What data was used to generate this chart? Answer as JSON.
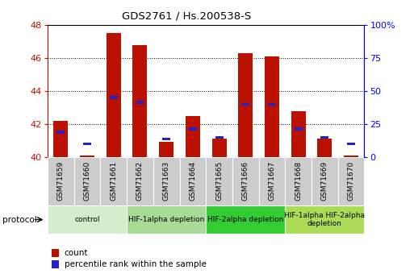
{
  "title": "GDS2761 / Hs.200538-S",
  "samples": [
    "GSM71659",
    "GSM71660",
    "GSM71661",
    "GSM71662",
    "GSM71663",
    "GSM71664",
    "GSM71665",
    "GSM71666",
    "GSM71667",
    "GSM71668",
    "GSM71669",
    "GSM71670"
  ],
  "count_values": [
    42.2,
    40.1,
    47.5,
    46.8,
    40.9,
    42.5,
    41.1,
    46.3,
    46.1,
    42.8,
    41.1,
    40.1
  ],
  "percentile_values": [
    41.5,
    40.8,
    43.6,
    43.3,
    41.1,
    41.7,
    41.2,
    43.2,
    43.2,
    41.7,
    41.2,
    40.8
  ],
  "ymin": 40,
  "ymax": 48,
  "yticks": [
    40,
    42,
    44,
    46,
    48
  ],
  "right_yticks_vals": [
    0,
    25,
    50,
    75,
    100
  ],
  "right_yticks_labels": [
    "0",
    "25",
    "50",
    "75",
    "100%"
  ],
  "bar_color": "#bb1100",
  "percentile_color": "#2222cc",
  "bar_width": 0.55,
  "groups": [
    {
      "label": "control",
      "start": 0,
      "end": 3,
      "color": "#d4edcc"
    },
    {
      "label": "HIF-1alpha depletion",
      "start": 3,
      "end": 6,
      "color": "#a8db96"
    },
    {
      "label": "HIF-2alpha depletion",
      "start": 6,
      "end": 9,
      "color": "#33cc33"
    },
    {
      "label": "HIF-1alpha HIF-2alpha\ndepletion",
      "start": 9,
      "end": 12,
      "color": "#aadd55"
    }
  ],
  "protocol_label": "protocol",
  "legend_items": [
    {
      "label": "count",
      "color": "#bb1100"
    },
    {
      "label": "percentile rank within the sample",
      "color": "#2222cc"
    }
  ],
  "xtick_bg": "#cccccc",
  "spine_color": "#000000",
  "grid_color": "#000000"
}
